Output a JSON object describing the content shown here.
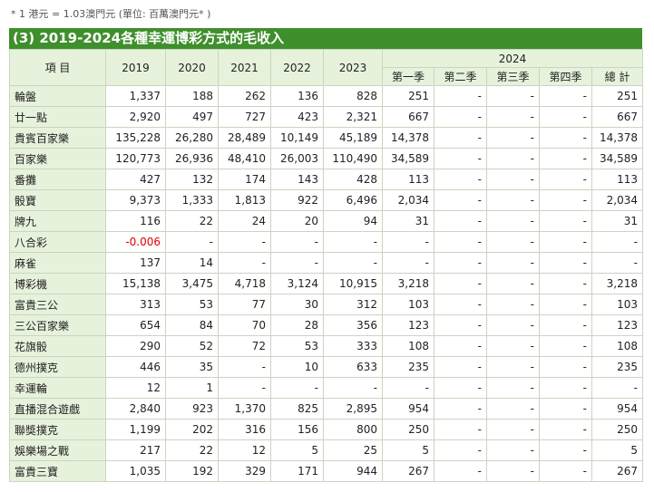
{
  "note": "* 1 港元 = 1.03澳門元 (單位: 百萬澳門元* )",
  "title": "(3) 2019-2024各種幸運博彩方式的毛收入",
  "header": {
    "item": "項 目",
    "years": [
      "2019",
      "2020",
      "2021",
      "2022",
      "2023"
    ],
    "year2024": "2024",
    "quarters": [
      "第一季",
      "第二季",
      "第三季",
      "第四季"
    ],
    "total": "總 計"
  },
  "rows": [
    {
      "label": "輪盤",
      "values": [
        "1,337",
        "188",
        "262",
        "136",
        "828",
        "251",
        "-",
        "-",
        "-",
        "251"
      ]
    },
    {
      "label": "廿一點",
      "values": [
        "2,920",
        "497",
        "727",
        "423",
        "2,321",
        "667",
        "-",
        "-",
        "-",
        "667"
      ]
    },
    {
      "label": "貴賓百家樂",
      "values": [
        "135,228",
        "26,280",
        "28,489",
        "10,149",
        "45,189",
        "14,378",
        "-",
        "-",
        "-",
        "14,378"
      ]
    },
    {
      "label": "百家樂",
      "values": [
        "120,773",
        "26,936",
        "48,410",
        "26,003",
        "110,490",
        "34,589",
        "-",
        "-",
        "-",
        "34,589"
      ]
    },
    {
      "label": "番攤",
      "values": [
        "427",
        "132",
        "174",
        "143",
        "428",
        "113",
        "-",
        "-",
        "-",
        "113"
      ]
    },
    {
      "label": "骰寶",
      "values": [
        "9,373",
        "1,333",
        "1,813",
        "922",
        "6,496",
        "2,034",
        "-",
        "-",
        "-",
        "2,034"
      ]
    },
    {
      "label": "牌九",
      "values": [
        "116",
        "22",
        "24",
        "20",
        "94",
        "31",
        "-",
        "-",
        "-",
        "31"
      ]
    },
    {
      "label": "八合彩",
      "values": [
        "-0.006",
        "-",
        "-",
        "-",
        "-",
        "-",
        "-",
        "-",
        "-",
        "-"
      ]
    },
    {
      "label": "麻雀",
      "values": [
        "137",
        "14",
        "-",
        "-",
        "-",
        "-",
        "-",
        "-",
        "-",
        "-"
      ]
    },
    {
      "label": "博彩機",
      "values": [
        "15,138",
        "3,475",
        "4,718",
        "3,124",
        "10,915",
        "3,218",
        "-",
        "-",
        "-",
        "3,218"
      ]
    },
    {
      "label": "富貴三公",
      "values": [
        "313",
        "53",
        "77",
        "30",
        "312",
        "103",
        "-",
        "-",
        "-",
        "103"
      ]
    },
    {
      "label": "三公百家樂",
      "values": [
        "654",
        "84",
        "70",
        "28",
        "356",
        "123",
        "-",
        "-",
        "-",
        "123"
      ]
    },
    {
      "label": "花旗骰",
      "values": [
        "290",
        "52",
        "72",
        "53",
        "333",
        "108",
        "-",
        "-",
        "-",
        "108"
      ]
    },
    {
      "label": "德州撲克",
      "values": [
        "446",
        "35",
        "-",
        "10",
        "633",
        "235",
        "-",
        "-",
        "-",
        "235"
      ]
    },
    {
      "label": "幸運輪",
      "values": [
        "12",
        "1",
        "-",
        "-",
        "-",
        "-",
        "-",
        "-",
        "-",
        "-"
      ]
    },
    {
      "label": "直播混合遊戲",
      "values": [
        "2,840",
        "923",
        "1,370",
        "825",
        "2,895",
        "954",
        "-",
        "-",
        "-",
        "954"
      ]
    },
    {
      "label": "聯獎撲克",
      "values": [
        "1,199",
        "202",
        "316",
        "156",
        "800",
        "250",
        "-",
        "-",
        "-",
        "250"
      ]
    },
    {
      "label": "娛樂場之戰",
      "values": [
        "217",
        "22",
        "12",
        "5",
        "25",
        "5",
        "-",
        "-",
        "-",
        "5"
      ]
    },
    {
      "label": "富貴三寶",
      "values": [
        "1,035",
        "192",
        "329",
        "171",
        "944",
        "267",
        "-",
        "-",
        "-",
        "267"
      ]
    }
  ]
}
